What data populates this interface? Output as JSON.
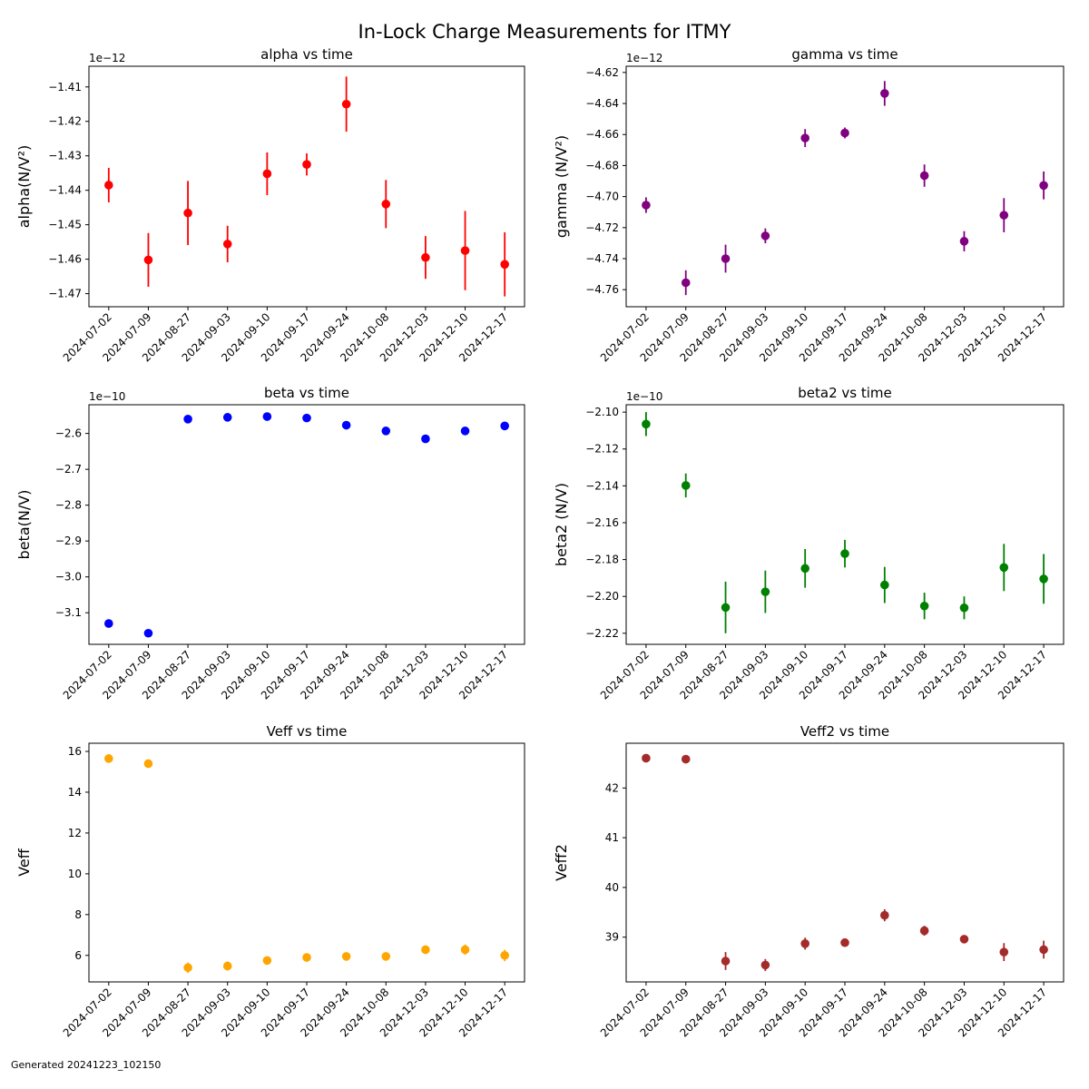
{
  "figure": {
    "title": "In-Lock Charge Measurements for ITMY",
    "footer": "Generated 20241223_102150"
  },
  "chart_data": [
    {
      "type": "scatter",
      "title": "alpha vs time",
      "ylabel": "alpha(N/V²)",
      "offset_label": "1e−12",
      "color": "#ff0000",
      "categories": [
        "2024-07-02",
        "2024-07-09",
        "2024-08-27",
        "2024-09-03",
        "2024-09-10",
        "2024-09-17",
        "2024-09-24",
        "2024-10-08",
        "2024-12-03",
        "2024-12-10",
        "2024-12-17"
      ],
      "values": [
        -1.4385,
        -1.4602,
        -1.4466,
        -1.4556,
        -1.4352,
        -1.4325,
        -1.415,
        -1.444,
        -1.4595,
        -1.4575,
        -1.4615
      ],
      "errors": [
        0.005,
        0.0078,
        0.0093,
        0.0053,
        0.0062,
        0.0032,
        0.008,
        0.007,
        0.0062,
        0.0115,
        0.0093
      ],
      "ylim": [
        -1.4738,
        -1.404
      ],
      "yticks": [
        -1.47,
        -1.46,
        -1.45,
        -1.44,
        -1.43,
        -1.42,
        -1.41
      ],
      "ytick_labels": [
        "−1.47",
        "−1.46",
        "−1.45",
        "−1.44",
        "−1.43",
        "−1.42",
        "−1.41"
      ]
    },
    {
      "type": "scatter",
      "title": "gamma vs time",
      "ylabel": "gamma (N/V²)",
      "offset_label": "1e−12",
      "color": "#800080",
      "categories": [
        "2024-07-02",
        "2024-07-09",
        "2024-08-27",
        "2024-09-03",
        "2024-09-10",
        "2024-09-17",
        "2024-09-24",
        "2024-10-08",
        "2024-12-03",
        "2024-12-10",
        "2024-12-17"
      ],
      "values": [
        -4.7055,
        -4.7555,
        -4.74,
        -4.7253,
        -4.6623,
        -4.659,
        -4.6335,
        -4.6865,
        -4.7288,
        -4.712,
        -4.6928
      ],
      "errors": [
        0.005,
        0.008,
        0.009,
        0.0048,
        0.0058,
        0.0035,
        0.008,
        0.0072,
        0.0065,
        0.011,
        0.009
      ],
      "ylim": [
        -4.771,
        -4.616
      ],
      "yticks": [
        -4.76,
        -4.74,
        -4.72,
        -4.7,
        -4.68,
        -4.66,
        -4.64,
        -4.62
      ],
      "ytick_labels": [
        "−4.76",
        "−4.74",
        "−4.72",
        "−4.70",
        "−4.68",
        "−4.66",
        "−4.64",
        "−4.62"
      ]
    },
    {
      "type": "scatter",
      "title": "beta vs time",
      "ylabel": "beta(N/V)",
      "offset_label": "1e−10",
      "color": "#0000ff",
      "categories": [
        "2024-07-02",
        "2024-07-09",
        "2024-08-27",
        "2024-09-03",
        "2024-09-10",
        "2024-09-17",
        "2024-09-24",
        "2024-10-08",
        "2024-12-03",
        "2024-12-10",
        "2024-12-17"
      ],
      "values": [
        -3.13,
        -3.157,
        -2.56,
        -2.555,
        -2.553,
        -2.557,
        -2.577,
        -2.593,
        -2.615,
        -2.593,
        -2.579
      ],
      "errors": [
        0.002,
        0.002,
        0.009,
        0.005,
        0.005,
        0.005,
        0.005,
        0.005,
        0.005,
        0.008,
        0.009
      ],
      "ylim": [
        -3.188,
        -2.52
      ],
      "yticks": [
        -3.1,
        -3.0,
        -2.9,
        -2.8,
        -2.7,
        -2.6
      ],
      "ytick_labels": [
        "−3.1",
        "−3.0",
        "−2.9",
        "−2.8",
        "−2.7",
        "−2.6"
      ]
    },
    {
      "type": "scatter",
      "title": "beta2 vs time",
      "ylabel": "beta2 (N/V)",
      "offset_label": "1e−10",
      "color": "#008000",
      "categories": [
        "2024-07-02",
        "2024-07-09",
        "2024-08-27",
        "2024-09-03",
        "2024-09-10",
        "2024-09-17",
        "2024-09-24",
        "2024-10-08",
        "2024-12-03",
        "2024-12-10",
        "2024-12-17"
      ],
      "values": [
        -2.1065,
        -2.1398,
        -2.206,
        -2.1975,
        -2.1848,
        -2.1768,
        -2.1938,
        -2.2052,
        -2.2062,
        -2.1843,
        -2.1905
      ],
      "errors": [
        0.0065,
        0.0065,
        0.014,
        0.0115,
        0.0105,
        0.0075,
        0.0098,
        0.0072,
        0.0062,
        0.0128,
        0.0135
      ],
      "ylim": [
        -2.226,
        -2.096
      ],
      "yticks": [
        -2.22,
        -2.2,
        -2.18,
        -2.16,
        -2.14,
        -2.12,
        -2.1
      ],
      "ytick_labels": [
        "−2.22",
        "−2.20",
        "−2.18",
        "−2.16",
        "−2.14",
        "−2.12",
        "−2.10"
      ]
    },
    {
      "type": "scatter",
      "title": "Veff vs time",
      "ylabel": "Veff",
      "offset_label": "",
      "color": "#ffa500",
      "categories": [
        "2024-07-02",
        "2024-07-09",
        "2024-08-27",
        "2024-09-03",
        "2024-09-10",
        "2024-09-17",
        "2024-09-24",
        "2024-10-08",
        "2024-12-03",
        "2024-12-10",
        "2024-12-17"
      ],
      "values": [
        15.65,
        15.4,
        5.4,
        5.48,
        5.75,
        5.9,
        5.95,
        5.95,
        6.28,
        6.28,
        6.0
      ],
      "errors": [
        0.05,
        0.05,
        0.25,
        0.22,
        0.18,
        0.12,
        0.12,
        0.12,
        0.12,
        0.25,
        0.28
      ],
      "ylim": [
        4.7,
        16.4
      ],
      "yticks": [
        6,
        8,
        10,
        12,
        14,
        16
      ],
      "ytick_labels": [
        "6",
        "8",
        "10",
        "12",
        "14",
        "16"
      ]
    },
    {
      "type": "scatter",
      "title": "Veff2 vs time",
      "ylabel": "Veff2",
      "offset_label": "",
      "color": "#a52a2a",
      "categories": [
        "2024-07-02",
        "2024-07-09",
        "2024-08-27",
        "2024-09-03",
        "2024-09-10",
        "2024-09-17",
        "2024-09-24",
        "2024-10-08",
        "2024-12-03",
        "2024-12-10",
        "2024-12-17"
      ],
      "values": [
        42.6,
        42.58,
        38.52,
        38.44,
        38.87,
        38.89,
        39.44,
        39.13,
        38.96,
        38.7,
        38.75
      ],
      "errors": [
        0.05,
        0.08,
        0.18,
        0.12,
        0.12,
        0.08,
        0.12,
        0.1,
        0.06,
        0.18,
        0.18
      ],
      "ylim": [
        38.1,
        42.9
      ],
      "yticks": [
        39,
        40,
        41,
        42
      ],
      "ytick_labels": [
        "39",
        "40",
        "41",
        "42"
      ]
    }
  ]
}
